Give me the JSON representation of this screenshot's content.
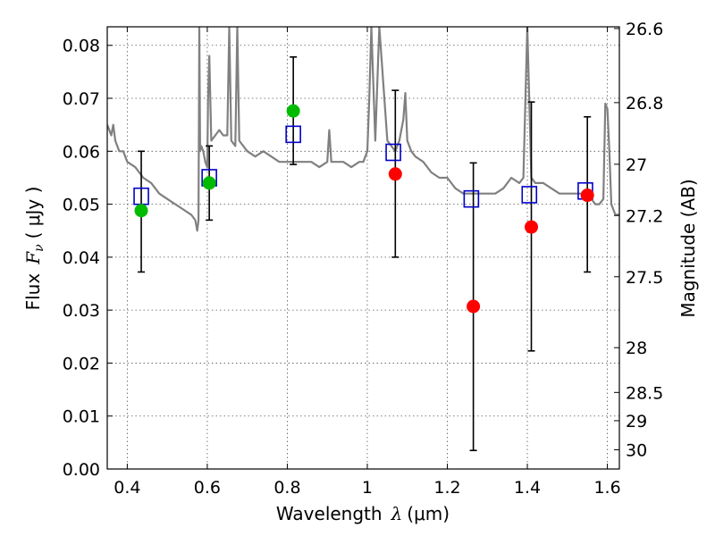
{
  "chart_data": {
    "type": "scatter",
    "xlabel_text": "Wavelength",
    "xlabel_symbol": "λ",
    "xlabel_unit": "(μm)",
    "ylabel_text": "Flux",
    "ylabel_symbol": "F",
    "ylabel_subscript": "ν",
    "ylabel_unit": "( μJy )",
    "ylabel_right": "Magnitude (AB)",
    "xlim": [
      0.35,
      1.63
    ],
    "ylim": [
      0.0,
      0.0835
    ],
    "grid": true,
    "x_ticks": [
      0.4,
      0.6,
      0.8,
      1.0,
      1.2,
      1.4,
      1.6
    ],
    "x_tick_labels": [
      "0.4",
      "0.6",
      "0.8",
      "1",
      "1.2",
      "1.4",
      "1.6"
    ],
    "y_ticks": [
      0.0,
      0.01,
      0.02,
      0.03,
      0.04,
      0.05,
      0.06,
      0.07,
      0.08
    ],
    "y_tick_labels": [
      "0.00",
      "0.01",
      "0.02",
      "0.03",
      "0.04",
      "0.05",
      "0.06",
      "0.07",
      "0.08"
    ],
    "right_ticks": [
      {
        "label": "26.6",
        "mag": 26.6
      },
      {
        "label": "26.8",
        "mag": 26.8
      },
      {
        "label": "27",
        "mag": 27.0
      },
      {
        "label": "27.2",
        "mag": 27.2
      },
      {
        "label": "27.5",
        "mag": 27.5
      },
      {
        "label": "28",
        "mag": 28.0
      },
      {
        "label": "28.5",
        "mag": 28.5
      },
      {
        "label": "29",
        "mag": 29.0
      },
      {
        "label": "30",
        "mag": 30.0
      }
    ],
    "colors": {
      "model": "#808080",
      "model_photometry": "#0000cc",
      "detections": "#00bb00",
      "upper_points": "#ff0000",
      "errorbars": "#000000"
    },
    "series": [
      {
        "kind": "line",
        "x": [
          0.35,
          0.36,
          0.365,
          0.37,
          0.38,
          0.39,
          0.4,
          0.42,
          0.44,
          0.46,
          0.48,
          0.5,
          0.52,
          0.54,
          0.56,
          0.57,
          0.575,
          0.578,
          0.58,
          0.582,
          0.585,
          0.59,
          0.595,
          0.6,
          0.602,
          0.605,
          0.61,
          0.62,
          0.63,
          0.64,
          0.65,
          0.655,
          0.66,
          0.67,
          0.675,
          0.68,
          0.69,
          0.7,
          0.72,
          0.74,
          0.76,
          0.78,
          0.8,
          0.82,
          0.84,
          0.86,
          0.88,
          0.9,
          0.905,
          0.91,
          0.92,
          0.94,
          0.96,
          0.98,
          0.99,
          1.0,
          1.005,
          1.01,
          1.02,
          1.03,
          1.05,
          1.07,
          1.08,
          1.09,
          1.095,
          1.1,
          1.11,
          1.12,
          1.14,
          1.16,
          1.18,
          1.2,
          1.22,
          1.24,
          1.26,
          1.28,
          1.3,
          1.32,
          1.34,
          1.36,
          1.38,
          1.39,
          1.4,
          1.41,
          1.42,
          1.44,
          1.46,
          1.48,
          1.5,
          1.52,
          1.54,
          1.56,
          1.57,
          1.58,
          1.59,
          1.595,
          1.6,
          1.605,
          1.61,
          1.62,
          1.63
        ],
        "y": [
          0.065,
          0.063,
          0.065,
          0.062,
          0.06,
          0.06,
          0.058,
          0.057,
          0.055,
          0.054,
          0.052,
          0.051,
          0.05,
          0.049,
          0.048,
          0.047,
          0.045,
          0.047,
          0.0835,
          0.06,
          0.061,
          0.06,
          0.058,
          0.057,
          0.07,
          0.078,
          0.062,
          0.063,
          0.064,
          0.063,
          0.063,
          0.0835,
          0.062,
          0.061,
          0.0835,
          0.062,
          0.061,
          0.06,
          0.059,
          0.06,
          0.059,
          0.058,
          0.058,
          0.058,
          0.058,
          0.058,
          0.057,
          0.058,
          0.064,
          0.058,
          0.058,
          0.058,
          0.057,
          0.058,
          0.058,
          0.06,
          0.07,
          0.0835,
          0.062,
          0.0835,
          0.062,
          0.06,
          0.062,
          0.066,
          0.071,
          0.062,
          0.06,
          0.059,
          0.058,
          0.056,
          0.055,
          0.055,
          0.053,
          0.052,
          0.052,
          0.052,
          0.052,
          0.052,
          0.053,
          0.055,
          0.054,
          0.055,
          0.0835,
          0.055,
          0.054,
          0.054,
          0.053,
          0.052,
          0.052,
          0.052,
          0.052,
          0.051,
          0.05,
          0.05,
          0.051,
          0.069,
          0.068,
          0.06,
          0.05,
          0.048,
          0.048
        ]
      },
      {
        "kind": "model-photometry",
        "marker": "open-square",
        "x": [
          0.435,
          0.605,
          0.815,
          1.065,
          1.26,
          1.405,
          1.545
        ],
        "y": [
          0.0515,
          0.055,
          0.0632,
          0.0598,
          0.051,
          0.0518,
          0.0525
        ]
      },
      {
        "kind": "detections",
        "marker": "filled-circle",
        "x": [
          0.435,
          0.605,
          0.815
        ],
        "y": [
          0.0488,
          0.054,
          0.0676
        ]
      },
      {
        "kind": "upper-points",
        "marker": "filled-circle",
        "x": [
          1.07,
          1.265,
          1.41,
          1.55
        ],
        "y": [
          0.0557,
          0.0307,
          0.0457,
          0.0517
        ]
      },
      {
        "kind": "errorbars",
        "x": [
          0.435,
          0.605,
          0.815,
          1.07,
          1.265,
          1.41,
          1.55
        ],
        "y_low": [
          0.0372,
          0.047,
          0.0575,
          0.04,
          0.0035,
          0.0223,
          0.0372
        ],
        "y_high": [
          0.06,
          0.061,
          0.0778,
          0.0715,
          0.0578,
          0.0693,
          0.0665
        ]
      }
    ]
  }
}
